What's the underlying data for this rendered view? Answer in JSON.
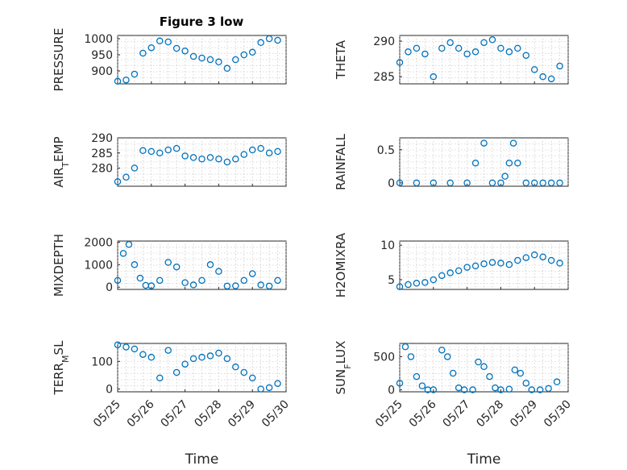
{
  "title": "Figure 3 low",
  "chart_data": [
    {
      "type": "scatter",
      "ylabel": "PRESSURE",
      "xlabel": "",
      "xlim": [
        "05/25",
        "05/30"
      ],
      "ylim": [
        860,
        1010
      ],
      "yticks": [
        "900",
        "950",
        "1000"
      ],
      "xticks": [],
      "x": [
        "05/25 00:00",
        "05/25 06:00",
        "05/25 12:00",
        "05/25 18:00",
        "05/26 00:00",
        "05/26 06:00",
        "05/26 12:00",
        "05/26 18:00",
        "05/27 00:00",
        "05/27 06:00",
        "05/27 12:00",
        "05/27 18:00",
        "05/28 00:00",
        "05/28 06:00",
        "05/28 12:00",
        "05/28 18:00",
        "05/29 00:00",
        "05/29 06:00",
        "05/29 12:00",
        "05/29 18:00"
      ],
      "y": [
        868,
        872,
        890,
        955,
        972,
        993,
        990,
        970,
        962,
        945,
        940,
        935,
        928,
        908,
        935,
        950,
        958,
        988,
        1000,
        995
      ]
    },
    {
      "type": "scatter",
      "ylabel": "THETA",
      "xlabel": "",
      "xlim": [
        "05/25",
        "05/30"
      ],
      "ylim": [
        284,
        290.8
      ],
      "yticks": [
        "285",
        "290"
      ],
      "xticks": [],
      "x": [
        "05/25 00:00",
        "05/25 06:00",
        "05/25 12:00",
        "05/25 18:00",
        "05/26 00:00",
        "05/26 06:00",
        "05/26 12:00",
        "05/26 18:00",
        "05/27 00:00",
        "05/27 06:00",
        "05/27 12:00",
        "05/27 18:00",
        "05/28 00:00",
        "05/28 06:00",
        "05/28 12:00",
        "05/28 18:00",
        "05/29 00:00",
        "05/29 06:00",
        "05/29 12:00",
        "05/29 18:00"
      ],
      "y": [
        287,
        288.5,
        289,
        288.2,
        285,
        289,
        289.8,
        289,
        288.2,
        288.5,
        289.8,
        290.2,
        289,
        288.5,
        289,
        288,
        286,
        285,
        284.7,
        286.5
      ]
    },
    {
      "type": "scatter",
      "ylabel": "AIR_TEMP",
      "xlabel": "",
      "xlim": [
        "05/25",
        "05/30"
      ],
      "ylim": [
        274,
        290
      ],
      "yticks": [
        "280",
        "285",
        "290"
      ],
      "xticks": [],
      "x": [
        "05/25 00:00",
        "05/25 06:00",
        "05/25 12:00",
        "05/25 18:00",
        "05/26 00:00",
        "05/26 06:00",
        "05/26 12:00",
        "05/26 18:00",
        "05/27 00:00",
        "05/27 06:00",
        "05/27 12:00",
        "05/27 18:00",
        "05/28 00:00",
        "05/28 06:00",
        "05/28 12:00",
        "05/28 18:00",
        "05/29 00:00",
        "05/29 06:00",
        "05/29 12:00",
        "05/29 18:00"
      ],
      "y": [
        275.5,
        277,
        280,
        285.8,
        285.5,
        285,
        286,
        286.5,
        284,
        283.5,
        283,
        283.5,
        283,
        282,
        283,
        284.5,
        286,
        286.5,
        285,
        285.5
      ]
    },
    {
      "type": "scatter",
      "ylabel": "RAINFALL",
      "xlabel": "",
      "xlim": [
        "05/25",
        "05/30"
      ],
      "ylim": [
        -0.05,
        0.68
      ],
      "yticks": [
        "0",
        "0.5"
      ],
      "xticks": [],
      "x": [
        "05/25 00:00",
        "05/25 12:00",
        "05/26 00:00",
        "05/26 12:00",
        "05/27 00:00",
        "05/27 06:00",
        "05/27 12:00",
        "05/27 18:00",
        "05/28 00:00",
        "05/28 03:00",
        "05/28 06:00",
        "05/28 09:00",
        "05/28 12:00",
        "05/28 18:00",
        "05/29 00:00",
        "05/29 06:00",
        "05/29 12:00",
        "05/29 18:00"
      ],
      "y": [
        0,
        0,
        0,
        0,
        0,
        0.3,
        0.6,
        0,
        0,
        0.1,
        0.3,
        0.6,
        0.3,
        0,
        0,
        0,
        0,
        0
      ]
    },
    {
      "type": "scatter",
      "ylabel": "MIXDEPTH",
      "xlabel": "",
      "xlim": [
        "05/25",
        "05/30"
      ],
      "ylim": [
        -100,
        2050
      ],
      "yticks": [
        "0",
        "1000",
        "2000"
      ],
      "xticks": [],
      "x": [
        "05/25 00:00",
        "05/25 04:00",
        "05/25 08:00",
        "05/25 12:00",
        "05/25 16:00",
        "05/25 20:00",
        "05/26 00:00",
        "05/26 06:00",
        "05/26 12:00",
        "05/26 18:00",
        "05/27 00:00",
        "05/27 06:00",
        "05/27 12:00",
        "05/27 18:00",
        "05/28 00:00",
        "05/28 06:00",
        "05/28 12:00",
        "05/28 18:00",
        "05/29 00:00",
        "05/29 06:00",
        "05/29 12:00",
        "05/29 18:00"
      ],
      "y": [
        300,
        1500,
        1900,
        1000,
        400,
        80,
        60,
        300,
        1100,
        900,
        200,
        100,
        300,
        1000,
        700,
        50,
        60,
        300,
        600,
        100,
        50,
        300
      ]
    },
    {
      "type": "scatter",
      "ylabel": "H2OMIXRA",
      "xlabel": "",
      "xlim": [
        "05/25",
        "05/30"
      ],
      "ylim": [
        3.6,
        10.6
      ],
      "yticks": [
        "5",
        "10"
      ],
      "xticks": [],
      "x": [
        "05/25 00:00",
        "05/25 06:00",
        "05/25 12:00",
        "05/25 18:00",
        "05/26 00:00",
        "05/26 06:00",
        "05/26 12:00",
        "05/26 18:00",
        "05/27 00:00",
        "05/27 06:00",
        "05/27 12:00",
        "05/27 18:00",
        "05/28 00:00",
        "05/28 06:00",
        "05/28 12:00",
        "05/28 18:00",
        "05/29 00:00",
        "05/29 06:00",
        "05/29 12:00",
        "05/29 18:00"
      ],
      "y": [
        4,
        4.3,
        4.5,
        4.6,
        5,
        5.6,
        6,
        6.3,
        6.8,
        7,
        7.3,
        7.5,
        7.4,
        7.2,
        7.8,
        8.2,
        8.6,
        8.3,
        7.8,
        7.4
      ]
    },
    {
      "type": "scatter",
      "ylabel": "TERR_MSL",
      "xlabel": "Time",
      "xlim": [
        "05/25",
        "05/30"
      ],
      "ylim": [
        -10,
        165
      ],
      "yticks": [
        "0",
        "100"
      ],
      "xticks": [
        "05/25",
        "05/26",
        "05/27",
        "05/28",
        "05/29",
        "05/30"
      ],
      "x": [
        "05/25 00:00",
        "05/25 06:00",
        "05/25 12:00",
        "05/25 18:00",
        "05/26 00:00",
        "05/26 06:00",
        "05/26 12:00",
        "05/26 18:00",
        "05/27 00:00",
        "05/27 06:00",
        "05/27 12:00",
        "05/27 18:00",
        "05/28 00:00",
        "05/28 06:00",
        "05/28 12:00",
        "05/28 18:00",
        "05/29 00:00",
        "05/29 06:00",
        "05/29 12:00",
        "05/29 18:00"
      ],
      "y": [
        160,
        152,
        145,
        125,
        115,
        40,
        140,
        60,
        90,
        110,
        115,
        120,
        130,
        110,
        80,
        60,
        40,
        0,
        5,
        20
      ]
    },
    {
      "type": "scatter",
      "ylabel": "SUN_FLUX",
      "xlabel": "Time",
      "xlim": [
        "05/25",
        "05/30"
      ],
      "ylim": [
        -30,
        700
      ],
      "yticks": [
        "0",
        "500"
      ],
      "xticks": [
        "05/25",
        "05/26",
        "05/27",
        "05/28",
        "05/29",
        "05/30"
      ],
      "x": [
        "05/25 00:00",
        "05/25 04:00",
        "05/25 08:00",
        "05/25 12:00",
        "05/25 16:00",
        "05/25 20:00",
        "05/26 00:00",
        "05/26 06:00",
        "05/26 10:00",
        "05/26 14:00",
        "05/26 18:00",
        "05/26 22:00",
        "05/27 04:00",
        "05/27 08:00",
        "05/27 12:00",
        "05/27 16:00",
        "05/27 20:00",
        "05/28 00:00",
        "05/28 06:00",
        "05/28 10:00",
        "05/28 14:00",
        "05/28 18:00",
        "05/28 22:00",
        "05/29 04:00",
        "05/29 10:00",
        "05/29 16:00"
      ],
      "y": [
        100,
        650,
        500,
        200,
        60,
        0,
        0,
        600,
        500,
        250,
        30,
        0,
        0,
        420,
        350,
        200,
        30,
        0,
        10,
        300,
        250,
        100,
        0,
        0,
        20,
        120
      ]
    }
  ]
}
